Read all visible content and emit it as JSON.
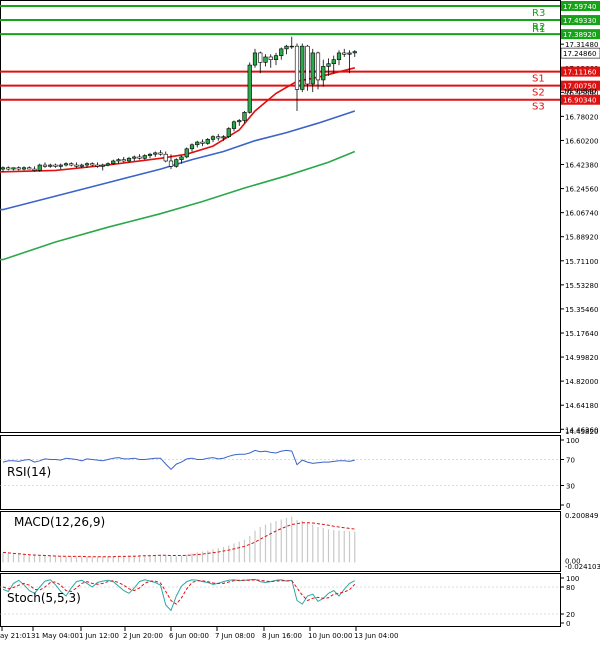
{
  "chart_data": {
    "type": "candlestick",
    "instrument": "",
    "x_ticks": [
      "ay 21:01",
      "31 May 04:00",
      "1 Jun 12:00",
      "2 Jun 20:00",
      "6 Jun 00:00",
      "7 Jun 08:00",
      "8 Jun 16:00",
      "10 Jun 00:00",
      "13 Jun 04:00"
    ],
    "price_axis": {
      "ylim": [
        14.4582,
        17.5974
      ],
      "ticks": [
        "17.31480",
        "17.13660",
        "16.95840",
        "16.78020",
        "16.60200",
        "16.42380",
        "16.24560",
        "16.06740",
        "15.88920",
        "15.71100",
        "15.53280",
        "15.35460",
        "15.17640",
        "14.99820",
        "14.82000",
        "14.64180",
        "14.46360"
      ],
      "tick_values": [
        17.3148,
        17.1366,
        16.9584,
        16.7802,
        16.602,
        16.4238,
        16.2456,
        16.0674,
        15.8892,
        15.711,
        15.5328,
        15.3546,
        15.1764,
        14.9982,
        14.82,
        14.6418,
        14.4636
      ],
      "bottom_label": "14.45820"
    },
    "levels": [
      {
        "name": "R3",
        "value": 17.4933,
        "value_label": "17.49330",
        "color": "#17a317"
      },
      {
        "name": "R2",
        "value": 17.3892,
        "value_label": "17.38920",
        "color": "#17a317"
      },
      {
        "name": "R1",
        "value": "",
        "value_label": "",
        "color": "#17a317"
      },
      {
        "name": "S1",
        "value": 17.1116,
        "value_label": "17.11160",
        "color": "#e01010"
      },
      {
        "name": "S2",
        "value": 17.0075,
        "value_label": "17.00750",
        "color": "#e01010"
      },
      {
        "name": "S3",
        "value": 16.9034,
        "value_label": "16.90340",
        "color": "#e01010"
      }
    ],
    "top_level": {
      "value": 17.5974,
      "value_label": "17.59740",
      "color": "#17a317"
    },
    "last_price": {
      "value": 17.2486,
      "value_label": "17.24860"
    },
    "small_label": "16.95840",
    "candles": [
      [
        16.39,
        16.41,
        16.37,
        16.4
      ],
      [
        16.4,
        16.41,
        16.38,
        16.39
      ],
      [
        16.39,
        16.4,
        16.38,
        16.4
      ],
      [
        16.4,
        16.41,
        16.38,
        16.39
      ],
      [
        16.39,
        16.41,
        16.38,
        16.4
      ],
      [
        16.4,
        16.41,
        16.39,
        16.39
      ],
      [
        16.39,
        16.41,
        16.37,
        16.38
      ],
      [
        16.38,
        16.43,
        16.37,
        16.42
      ],
      [
        16.42,
        16.44,
        16.4,
        16.41
      ],
      [
        16.41,
        16.43,
        16.4,
        16.42
      ],
      [
        16.42,
        16.43,
        16.4,
        16.41
      ],
      [
        16.41,
        16.43,
        16.39,
        16.42
      ],
      [
        16.42,
        16.44,
        16.41,
        16.43
      ],
      [
        16.43,
        16.44,
        16.41,
        16.42
      ],
      [
        16.42,
        16.44,
        16.4,
        16.41
      ],
      [
        16.41,
        16.43,
        16.4,
        16.42
      ],
      [
        16.42,
        16.44,
        16.4,
        16.43
      ],
      [
        16.43,
        16.44,
        16.41,
        16.42
      ],
      [
        16.42,
        16.44,
        16.4,
        16.41
      ],
      [
        16.41,
        16.43,
        16.38,
        16.42
      ],
      [
        16.42,
        16.44,
        16.41,
        16.43
      ],
      [
        16.43,
        16.46,
        16.42,
        16.45
      ],
      [
        16.45,
        16.47,
        16.43,
        16.46
      ],
      [
        16.46,
        16.48,
        16.44,
        16.45
      ],
      [
        16.45,
        16.48,
        16.44,
        16.47
      ],
      [
        16.47,
        16.49,
        16.45,
        16.48
      ],
      [
        16.48,
        16.5,
        16.46,
        16.47
      ],
      [
        16.47,
        16.5,
        16.46,
        16.49
      ],
      [
        16.49,
        16.51,
        16.47,
        16.5
      ],
      [
        16.5,
        16.52,
        16.48,
        16.51
      ],
      [
        16.51,
        16.53,
        16.49,
        16.5
      ],
      [
        16.5,
        16.52,
        16.44,
        16.45
      ],
      [
        16.45,
        16.5,
        16.39,
        16.41
      ],
      [
        16.41,
        16.47,
        16.4,
        16.46
      ],
      [
        16.46,
        16.49,
        16.43,
        16.48
      ],
      [
        16.48,
        16.55,
        16.47,
        16.54
      ],
      [
        16.54,
        16.58,
        16.52,
        16.57
      ],
      [
        16.57,
        16.6,
        16.55,
        16.59
      ],
      [
        16.59,
        16.61,
        16.56,
        16.58
      ],
      [
        16.58,
        16.62,
        16.57,
        16.61
      ],
      [
        16.61,
        16.64,
        16.59,
        16.63
      ],
      [
        16.63,
        16.65,
        16.6,
        16.62
      ],
      [
        16.62,
        16.64,
        16.6,
        16.63
      ],
      [
        16.63,
        16.7,
        16.62,
        16.69
      ],
      [
        16.69,
        16.75,
        16.67,
        16.74
      ],
      [
        16.74,
        16.76,
        16.71,
        16.75
      ],
      [
        16.75,
        16.82,
        16.73,
        16.81
      ],
      [
        16.81,
        17.18,
        16.8,
        17.16
      ],
      [
        17.16,
        17.28,
        17.14,
        17.25
      ],
      [
        17.25,
        17.26,
        17.1,
        17.18
      ],
      [
        17.18,
        17.24,
        17.15,
        17.22
      ],
      [
        17.22,
        17.24,
        17.14,
        17.2
      ],
      [
        17.2,
        17.25,
        17.16,
        17.23
      ],
      [
        17.23,
        17.29,
        17.2,
        17.28
      ],
      [
        17.28,
        17.31,
        17.24,
        17.3
      ],
      [
        17.3,
        17.37,
        17.28,
        17.3
      ],
      [
        17.3,
        17.32,
        16.82,
        16.98
      ],
      [
        16.98,
        17.32,
        16.96,
        17.3
      ],
      [
        17.3,
        17.31,
        16.97,
        17.02
      ],
      [
        17.02,
        17.28,
        16.96,
        17.25
      ],
      [
        17.25,
        17.26,
        16.98,
        17.05
      ],
      [
        17.05,
        17.2,
        17.0,
        17.15
      ],
      [
        17.15,
        17.21,
        17.08,
        17.17
      ],
      [
        17.17,
        17.23,
        17.1,
        17.2
      ],
      [
        17.2,
        17.27,
        17.16,
        17.25
      ],
      [
        17.25,
        17.28,
        17.22,
        17.24
      ],
      [
        17.24,
        17.27,
        17.1,
        17.25
      ],
      [
        17.25,
        17.27,
        17.22,
        17.26
      ]
    ],
    "ma_fast_color": "#e01010",
    "ma_mid_color": "#3a64c8",
    "ma_slow_color": "#2aa84a",
    "ma_fast": [
      [
        0,
        16.37
      ],
      [
        10,
        16.38
      ],
      [
        20,
        16.42
      ],
      [
        30,
        16.47
      ],
      [
        35,
        16.5
      ],
      [
        40,
        16.56
      ],
      [
        45,
        16.68
      ],
      [
        48,
        16.82
      ],
      [
        52,
        16.95
      ],
      [
        56,
        17.04
      ],
      [
        60,
        17.07
      ],
      [
        64,
        17.11
      ],
      [
        67,
        17.14
      ]
    ],
    "ma_mid": [
      [
        0,
        16.09
      ],
      [
        10,
        16.19
      ],
      [
        20,
        16.29
      ],
      [
        30,
        16.39
      ],
      [
        36,
        16.46
      ],
      [
        42,
        16.52
      ],
      [
        48,
        16.6
      ],
      [
        54,
        16.66
      ],
      [
        60,
        16.73
      ],
      [
        67,
        16.82
      ]
    ],
    "ma_slow": [
      [
        0,
        15.72
      ],
      [
        10,
        15.85
      ],
      [
        20,
        15.96
      ],
      [
        30,
        16.06
      ],
      [
        38,
        16.15
      ],
      [
        46,
        16.25
      ],
      [
        54,
        16.34
      ],
      [
        62,
        16.44
      ],
      [
        67,
        16.52
      ]
    ],
    "rsi": {
      "label": "RSI(14)",
      "ticks": [
        "100",
        "70",
        "30",
        "0"
      ],
      "tick_values": [
        100,
        70,
        30,
        0
      ],
      "values": [
        66,
        68,
        68,
        67,
        69,
        70,
        66,
        68,
        71,
        70,
        70,
        69,
        72,
        71,
        70,
        68,
        71,
        70,
        69,
        68,
        70,
        72,
        73,
        71,
        71,
        72,
        70,
        70,
        71,
        72,
        72,
        63,
        55,
        63,
        66,
        71,
        72,
        70,
        70,
        72,
        73,
        71,
        72,
        75,
        77,
        78,
        78,
        80,
        84,
        82,
        83,
        81,
        80,
        83,
        84,
        83,
        62,
        69,
        66,
        64,
        65,
        66,
        66,
        67,
        68,
        68,
        67,
        69
      ],
      "color": "#3a64c8"
    },
    "macd": {
      "label": "MACD(12,26,9)",
      "top_label": "0.200849",
      "bottom_label": "0.00",
      "bottom_label_2": "-0.024103",
      "ylim": [
        -0.024103,
        0.200849
      ],
      "histogram": [
        0.04,
        0.038,
        0.036,
        0.034,
        0.032,
        0.031,
        0.03,
        0.029,
        0.028,
        0.027,
        0.026,
        0.026,
        0.025,
        0.025,
        0.025,
        0.024,
        0.024,
        0.024,
        0.024,
        0.023,
        0.024,
        0.025,
        0.026,
        0.027,
        0.028,
        0.029,
        0.03,
        0.03,
        0.031,
        0.032,
        0.032,
        0.03,
        0.026,
        0.026,
        0.028,
        0.032,
        0.037,
        0.042,
        0.046,
        0.05,
        0.055,
        0.06,
        0.065,
        0.072,
        0.08,
        0.088,
        0.096,
        0.112,
        0.135,
        0.15,
        0.16,
        0.168,
        0.175,
        0.182,
        0.189,
        0.194,
        0.18,
        0.176,
        0.165,
        0.16,
        0.15,
        0.146,
        0.14,
        0.137,
        0.135,
        0.134,
        0.132,
        0.13
      ],
      "signal": [
        0.042,
        0.04,
        0.038,
        0.036,
        0.034,
        0.032,
        0.031,
        0.03,
        0.029,
        0.028,
        0.027,
        0.026,
        0.026,
        0.025,
        0.025,
        0.025,
        0.024,
        0.024,
        0.024,
        0.024,
        0.024,
        0.024,
        0.025,
        0.025,
        0.026,
        0.026,
        0.027,
        0.028,
        0.028,
        0.029,
        0.03,
        0.03,
        0.029,
        0.029,
        0.029,
        0.03,
        0.031,
        0.033,
        0.035,
        0.038,
        0.041,
        0.044,
        0.048,
        0.052,
        0.057,
        0.062,
        0.068,
        0.076,
        0.086,
        0.098,
        0.11,
        0.122,
        0.133,
        0.143,
        0.152,
        0.161,
        0.164,
        0.168,
        0.168,
        0.167,
        0.164,
        0.161,
        0.157,
        0.153,
        0.15,
        0.147,
        0.144,
        0.141
      ],
      "bar_color": "#c8c8c8",
      "signal_color": "#e01010"
    },
    "stoch": {
      "label": "Stoch(5,5,3)",
      "ticks": [
        "100",
        "80",
        "20",
        "0"
      ],
      "tick_values": [
        100,
        80,
        20,
        0
      ],
      "k": [
        75,
        70,
        88,
        95,
        85,
        72,
        66,
        80,
        93,
        96,
        85,
        70,
        60,
        78,
        92,
        95,
        88,
        80,
        90,
        93,
        95,
        92,
        82,
        72,
        66,
        78,
        92,
        96,
        93,
        90,
        84,
        40,
        28,
        60,
        82,
        92,
        96,
        95,
        92,
        90,
        86,
        88,
        92,
        95,
        96,
        94,
        95,
        96,
        97,
        92,
        90,
        92,
        95,
        96,
        93,
        95,
        50,
        42,
        60,
        64,
        48,
        55,
        66,
        72,
        60,
        75,
        88,
        94
      ],
      "d": [
        80,
        76,
        79,
        84,
        88,
        84,
        75,
        73,
        80,
        90,
        91,
        84,
        72,
        70,
        78,
        88,
        92,
        88,
        86,
        88,
        92,
        94,
        90,
        84,
        76,
        72,
        78,
        88,
        93,
        93,
        89,
        70,
        50,
        42,
        56,
        76,
        90,
        94,
        94,
        92,
        89,
        88,
        88,
        91,
        94,
        95,
        95,
        95,
        96,
        95,
        93,
        92,
        93,
        94,
        94,
        94,
        78,
        62,
        50,
        55,
        57,
        55,
        56,
        64,
        66,
        69,
        74,
        86
      ],
      "k_color": "#2aa8a8",
      "d_color": "#e01010"
    }
  }
}
